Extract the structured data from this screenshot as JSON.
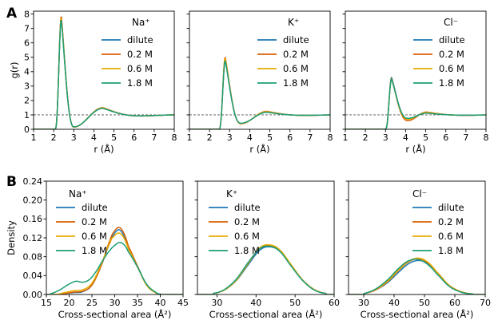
{
  "figure": {
    "panel_a_letter": "A",
    "panel_b_letter": "B"
  },
  "colors": {
    "dilute": "#1f77b4",
    "0.2 M": "#d95f02",
    "0.6 M": "#e6ab02",
    "1.8 M": "#1b9e77",
    "reference": "#555555"
  },
  "chart_data": [
    {
      "id": "A-Na",
      "panel": "A",
      "type": "line",
      "ion_label": "Na⁺",
      "xlabel": "r (Å)",
      "ylabel": "g(r)",
      "xlim": [
        1,
        8
      ],
      "ylim": [
        0,
        8.2
      ],
      "xticks": [
        1,
        2,
        3,
        4,
        5,
        6,
        7,
        8
      ],
      "yticks": [
        0,
        1,
        2,
        3,
        4,
        5,
        6,
        7,
        8
      ],
      "ytick_labels_visible": true,
      "reference_line_y": 1,
      "series": [
        {
          "name": "dilute",
          "peak": [
            2.38,
            7.75
          ],
          "trough": [
            3.0,
            0.15
          ],
          "second": [
            4.45,
            1.5
          ]
        },
        {
          "name": "0.2 M",
          "peak": [
            2.38,
            7.85
          ],
          "trough": [
            3.0,
            0.15
          ],
          "second": [
            4.45,
            1.5
          ]
        },
        {
          "name": "0.6 M",
          "peak": [
            2.38,
            7.7
          ],
          "trough": [
            3.0,
            0.16
          ],
          "second": [
            4.45,
            1.48
          ]
        },
        {
          "name": "1.8 M",
          "peak": [
            2.38,
            7.6
          ],
          "trough": [
            3.0,
            0.17
          ],
          "second": [
            4.45,
            1.45
          ]
        }
      ]
    },
    {
      "id": "A-K",
      "panel": "A",
      "type": "line",
      "ion_label": "K⁺",
      "xlabel": "r (Å)",
      "ylabel": "",
      "xlim": [
        1,
        8
      ],
      "ylim": [
        0,
        8.2
      ],
      "xticks": [
        1,
        2,
        3,
        4,
        5,
        6,
        7,
        8
      ],
      "yticks": [
        0,
        1,
        2,
        3,
        4,
        5,
        6,
        7,
        8
      ],
      "ytick_labels_visible": false,
      "reference_line_y": 1,
      "series": [
        {
          "name": "dilute",
          "peak": [
            2.78,
            4.8
          ],
          "trough": [
            3.55,
            0.4
          ],
          "second": [
            4.85,
            1.2
          ]
        },
        {
          "name": "0.2 M",
          "peak": [
            2.78,
            5.0
          ],
          "trough": [
            3.55,
            0.38
          ],
          "second": [
            4.85,
            1.25
          ]
        },
        {
          "name": "0.6 M",
          "peak": [
            2.78,
            4.9
          ],
          "trough": [
            3.55,
            0.4
          ],
          "second": [
            4.85,
            1.22
          ]
        },
        {
          "name": "1.8 M",
          "peak": [
            2.78,
            4.75
          ],
          "trough": [
            3.55,
            0.42
          ],
          "second": [
            4.85,
            1.18
          ]
        }
      ]
    },
    {
      "id": "A-Cl",
      "panel": "A",
      "type": "line",
      "ion_label": "Cl⁻",
      "xlabel": "r (Å)",
      "ylabel": "",
      "xlim": [
        1,
        8
      ],
      "ylim": [
        0,
        8.2
      ],
      "xticks": [
        1,
        2,
        3,
        4,
        5,
        6,
        7,
        8
      ],
      "yticks": [
        0,
        1,
        2,
        3,
        4,
        5,
        6,
        7,
        8
      ],
      "ytick_labels_visible": false,
      "reference_line_y": 1,
      "series": [
        {
          "name": "dilute",
          "peak": [
            3.3,
            3.6
          ],
          "trough": [
            4.1,
            0.72
          ],
          "second": [
            5.05,
            1.18
          ]
        },
        {
          "name": "0.2 M",
          "peak": [
            3.3,
            3.55
          ],
          "trough": [
            4.1,
            0.6
          ],
          "second": [
            5.05,
            1.2
          ]
        },
        {
          "name": "0.6 M",
          "peak": [
            3.3,
            3.5
          ],
          "trough": [
            4.1,
            0.7
          ],
          "second": [
            5.05,
            1.17
          ]
        },
        {
          "name": "1.8 M",
          "peak": [
            3.3,
            3.5
          ],
          "trough": [
            4.1,
            0.76
          ],
          "second": [
            5.05,
            1.12
          ]
        }
      ]
    },
    {
      "id": "B-Na",
      "panel": "B",
      "type": "line",
      "ion_label": "Na⁺",
      "xlabel": "Cross-sectional area (Å²)",
      "ylabel": "Density",
      "xlim": [
        15,
        45
      ],
      "ylim": [
        0,
        0.24
      ],
      "xticks": [
        15,
        20,
        25,
        30,
        35,
        40,
        45
      ],
      "yticks": [
        0,
        0.04,
        0.08,
        0.12,
        0.16,
        0.2,
        0.24
      ],
      "ytick_labels": [
        "0.00",
        "0.04",
        "0.08",
        "0.12",
        "0.16",
        "0.20",
        "0.24"
      ],
      "ytick_labels_visible": true,
      "series": [
        {
          "name": "dilute",
          "x": [
            17,
            19,
            21,
            23,
            25,
            27,
            29,
            30,
            31,
            32,
            33,
            35,
            37,
            39,
            40
          ],
          "y": [
            0.0,
            0.002,
            0.004,
            0.006,
            0.02,
            0.06,
            0.11,
            0.13,
            0.137,
            0.125,
            0.1,
            0.06,
            0.02,
            0.004,
            0.001
          ]
        },
        {
          "name": "0.2 M",
          "x": [
            17,
            19,
            21,
            23,
            25,
            27,
            29,
            30,
            31,
            32,
            33,
            35,
            37,
            39,
            40
          ],
          "y": [
            0.0,
            0.002,
            0.005,
            0.007,
            0.02,
            0.06,
            0.115,
            0.135,
            0.142,
            0.13,
            0.102,
            0.06,
            0.02,
            0.004,
            0.001
          ]
        },
        {
          "name": "0.6 M",
          "x": [
            17,
            19,
            21,
            23,
            25,
            27,
            29,
            30,
            31,
            32,
            33,
            35,
            37,
            39,
            40
          ],
          "y": [
            0.0,
            0.004,
            0.008,
            0.01,
            0.024,
            0.063,
            0.11,
            0.125,
            0.13,
            0.12,
            0.096,
            0.058,
            0.02,
            0.004,
            0.001
          ]
        },
        {
          "name": "1.8 M",
          "x": [
            16,
            18,
            20,
            21.5,
            23,
            24.5,
            26,
            27.5,
            29,
            30,
            31,
            32,
            33,
            35,
            37,
            39,
            40
          ],
          "y": [
            0.002,
            0.01,
            0.022,
            0.028,
            0.026,
            0.032,
            0.05,
            0.074,
            0.094,
            0.104,
            0.11,
            0.106,
            0.09,
            0.058,
            0.022,
            0.005,
            0.001
          ]
        }
      ]
    },
    {
      "id": "B-K",
      "panel": "B",
      "type": "line",
      "ion_label": "K⁺",
      "xlabel": "Cross-sectional area (Å²)",
      "ylabel": "",
      "xlim": [
        25,
        60
      ],
      "ylim": [
        0,
        0.24
      ],
      "xticks": [
        30,
        40,
        50,
        60
      ],
      "yticks": [
        0,
        0.04,
        0.08,
        0.12,
        0.16,
        0.2,
        0.24
      ],
      "ytick_labels_visible": false,
      "series": [
        {
          "name": "dilute",
          "x": [
            29,
            32,
            35,
            38,
            41,
            43.5,
            46,
            49,
            52,
            55,
            58
          ],
          "y": [
            0.002,
            0.01,
            0.03,
            0.063,
            0.094,
            0.101,
            0.092,
            0.062,
            0.03,
            0.01,
            0.002
          ]
        },
        {
          "name": "0.2 M",
          "x": [
            29,
            32,
            35,
            38,
            41,
            43.5,
            46,
            49,
            52,
            55,
            58
          ],
          "y": [
            0.002,
            0.01,
            0.031,
            0.066,
            0.098,
            0.104,
            0.094,
            0.062,
            0.03,
            0.01,
            0.002
          ]
        },
        {
          "name": "0.6 M",
          "x": [
            29,
            32,
            35,
            38,
            41,
            43.5,
            46,
            49,
            52,
            55,
            58
          ],
          "y": [
            0.002,
            0.01,
            0.031,
            0.066,
            0.099,
            0.105,
            0.095,
            0.063,
            0.03,
            0.01,
            0.002
          ]
        },
        {
          "name": "1.8 M",
          "x": [
            29,
            32,
            35,
            38,
            41,
            43.5,
            46,
            49,
            52,
            55,
            58
          ],
          "y": [
            0.002,
            0.011,
            0.033,
            0.068,
            0.097,
            0.102,
            0.092,
            0.06,
            0.029,
            0.009,
            0.002
          ]
        }
      ]
    },
    {
      "id": "B-Cl",
      "panel": "B",
      "type": "line",
      "ion_label": "Cl⁻",
      "xlabel": "Cross-sectional area (Å²)",
      "ylabel": "",
      "xlim": [
        25,
        70
      ],
      "ylim": [
        0,
        0.24
      ],
      "xticks": [
        30,
        40,
        50,
        60,
        70
      ],
      "yticks": [
        0,
        0.04,
        0.08,
        0.12,
        0.16,
        0.2,
        0.24
      ],
      "ytick_labels_visible": false,
      "series": [
        {
          "name": "dilute",
          "x": [
            30,
            34,
            38,
            42,
            45,
            48,
            51,
            54,
            58,
            62,
            66
          ],
          "y": [
            0.002,
            0.01,
            0.026,
            0.05,
            0.066,
            0.072,
            0.066,
            0.048,
            0.02,
            0.006,
            0.001
          ]
        },
        {
          "name": "0.2 M",
          "x": [
            30,
            34,
            38,
            42,
            45,
            48,
            51,
            54,
            58,
            62,
            66
          ],
          "y": [
            0.002,
            0.01,
            0.028,
            0.054,
            0.07,
            0.076,
            0.068,
            0.048,
            0.02,
            0.006,
            0.001
          ]
        },
        {
          "name": "0.6 M",
          "x": [
            30,
            34,
            38,
            42,
            45,
            48,
            51,
            54,
            58,
            62,
            66
          ],
          "y": [
            0.002,
            0.011,
            0.029,
            0.055,
            0.071,
            0.077,
            0.069,
            0.048,
            0.02,
            0.006,
            0.001
          ]
        },
        {
          "name": "1.8 M",
          "x": [
            30,
            34,
            38,
            42,
            45,
            48,
            51,
            54,
            58,
            62,
            66
          ],
          "y": [
            0.002,
            0.012,
            0.032,
            0.058,
            0.072,
            0.074,
            0.064,
            0.044,
            0.018,
            0.005,
            0.001
          ]
        }
      ]
    }
  ]
}
